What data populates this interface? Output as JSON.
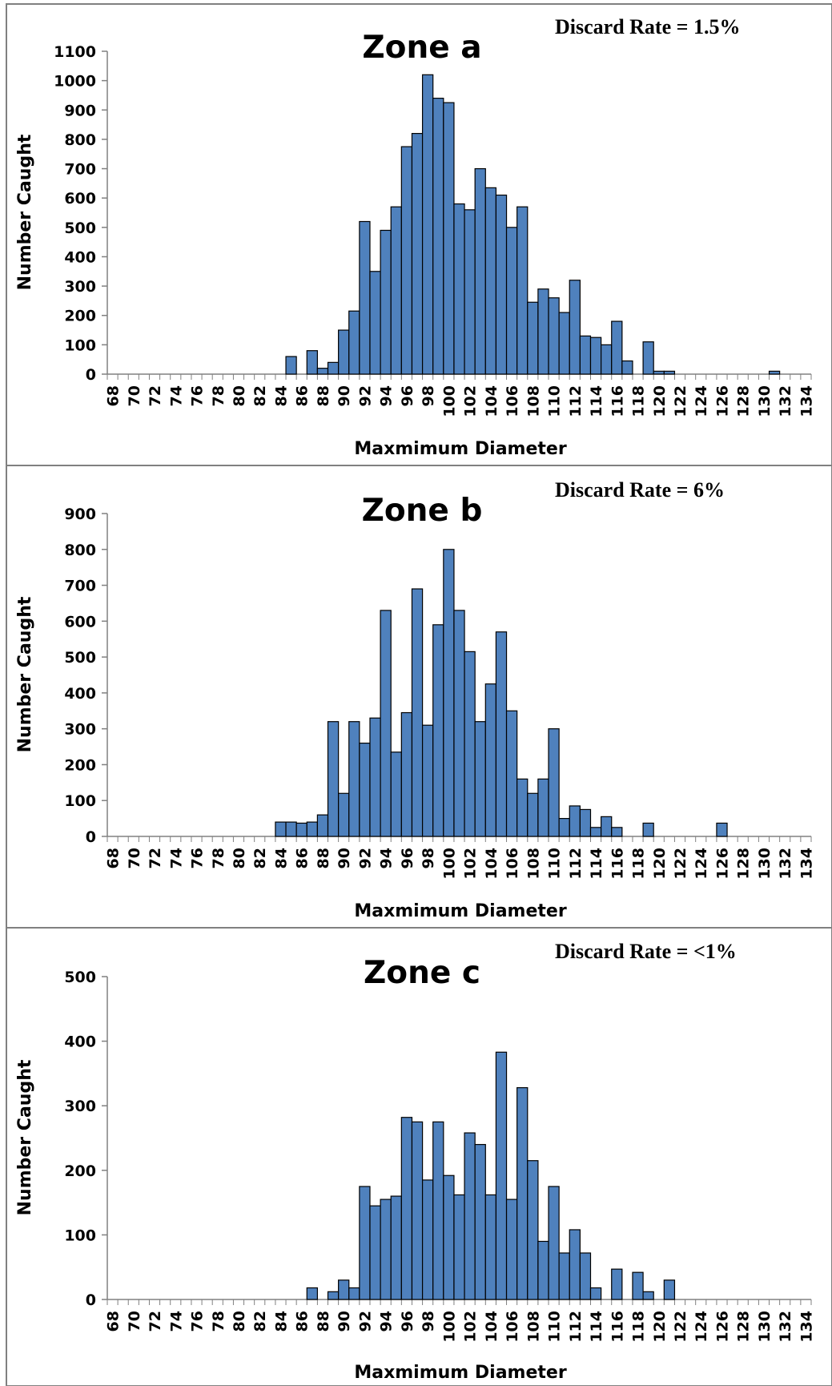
{
  "chart_data": [
    {
      "type": "bar",
      "title": "Zone a",
      "annotation": "Discard Rate = 1.5%",
      "xlabel": "Maxmimum Diameter",
      "ylabel": "Number Caught",
      "ylim": [
        0,
        1100
      ],
      "yticks": [
        "0",
        "100",
        "200",
        "300",
        "400",
        "500",
        "600",
        "700",
        "800",
        "900",
        "1000",
        "1100"
      ],
      "xrange": [
        68,
        134
      ],
      "xticks": [
        "68",
        "70",
        "72",
        "74",
        "76",
        "78",
        "80",
        "82",
        "84",
        "86",
        "88",
        "90",
        "92",
        "94",
        "96",
        "98",
        "100",
        "102",
        "104",
        "106",
        "108",
        "110",
        "112",
        "114",
        "116",
        "118",
        "120",
        "122",
        "124",
        "126",
        "128",
        "130",
        "132",
        "134"
      ],
      "bar_color": "#4f81bd",
      "x": [
        85,
        87,
        88,
        89,
        90,
        91,
        92,
        93,
        94,
        95,
        96,
        97,
        98,
        99,
        100,
        101,
        102,
        103,
        104,
        105,
        106,
        107,
        108,
        109,
        110,
        111,
        112,
        113,
        114,
        115,
        116,
        117,
        119,
        120,
        121,
        131
      ],
      "values": [
        60,
        80,
        20,
        40,
        150,
        215,
        520,
        350,
        490,
        570,
        775,
        820,
        1020,
        940,
        925,
        580,
        560,
        700,
        635,
        610,
        500,
        570,
        245,
        290,
        260,
        210,
        320,
        130,
        125,
        100,
        180,
        45,
        110,
        10,
        10,
        10
      ]
    },
    {
      "type": "bar",
      "title": "Zone b",
      "annotation": "Discard Rate = 6%",
      "xlabel": "Maxmimum Diameter",
      "ylabel": "Number Caught",
      "ylim": [
        0,
        900
      ],
      "yticks": [
        "0",
        "100",
        "200",
        "300",
        "400",
        "500",
        "600",
        "700",
        "800",
        "900"
      ],
      "xrange": [
        68,
        134
      ],
      "xticks": [
        "68",
        "70",
        "72",
        "74",
        "76",
        "78",
        "80",
        "82",
        "84",
        "86",
        "88",
        "90",
        "92",
        "94",
        "96",
        "98",
        "100",
        "102",
        "104",
        "106",
        "108",
        "110",
        "112",
        "114",
        "116",
        "118",
        "120",
        "122",
        "124",
        "126",
        "128",
        "130",
        "132",
        "134"
      ],
      "bar_color": "#4f81bd",
      "x": [
        84,
        85,
        86,
        87,
        88,
        89,
        90,
        91,
        92,
        93,
        94,
        95,
        96,
        97,
        98,
        99,
        100,
        101,
        102,
        103,
        104,
        105,
        106,
        107,
        108,
        109,
        110,
        111,
        112,
        113,
        114,
        115,
        116,
        119,
        126
      ],
      "values": [
        40,
        40,
        37,
        40,
        60,
        320,
        120,
        320,
        260,
        330,
        630,
        235,
        345,
        690,
        310,
        590,
        800,
        630,
        515,
        320,
        425,
        570,
        350,
        160,
        120,
        160,
        300,
        50,
        85,
        75,
        25,
        55,
        25,
        37,
        37
      ]
    },
    {
      "type": "bar",
      "title": "Zone c",
      "annotation": "Discard Rate = <1%",
      "xlabel": "Maxmimum Diameter",
      "ylabel": "Number Caught",
      "ylim": [
        0,
        500
      ],
      "yticks": [
        "0",
        "100",
        "200",
        "300",
        "400",
        "500"
      ],
      "xrange": [
        68,
        134
      ],
      "xticks": [
        "68",
        "70",
        "72",
        "74",
        "76",
        "78",
        "80",
        "82",
        "84",
        "86",
        "88",
        "90",
        "92",
        "94",
        "96",
        "98",
        "100",
        "102",
        "104",
        "106",
        "108",
        "110",
        "112",
        "114",
        "116",
        "118",
        "120",
        "122",
        "124",
        "126",
        "128",
        "130",
        "132",
        "134"
      ],
      "bar_color": "#4f81bd",
      "x": [
        87,
        89,
        90,
        91,
        92,
        93,
        94,
        95,
        96,
        97,
        98,
        99,
        100,
        101,
        102,
        103,
        104,
        105,
        106,
        107,
        108,
        109,
        110,
        111,
        112,
        113,
        114,
        116,
        118,
        119,
        121
      ],
      "values": [
        18,
        12,
        30,
        18,
        175,
        145,
        155,
        160,
        282,
        275,
        185,
        275,
        192,
        162,
        258,
        240,
        162,
        383,
        155,
        328,
        215,
        90,
        175,
        72,
        108,
        72,
        18,
        47,
        42,
        12,
        30
      ]
    }
  ]
}
